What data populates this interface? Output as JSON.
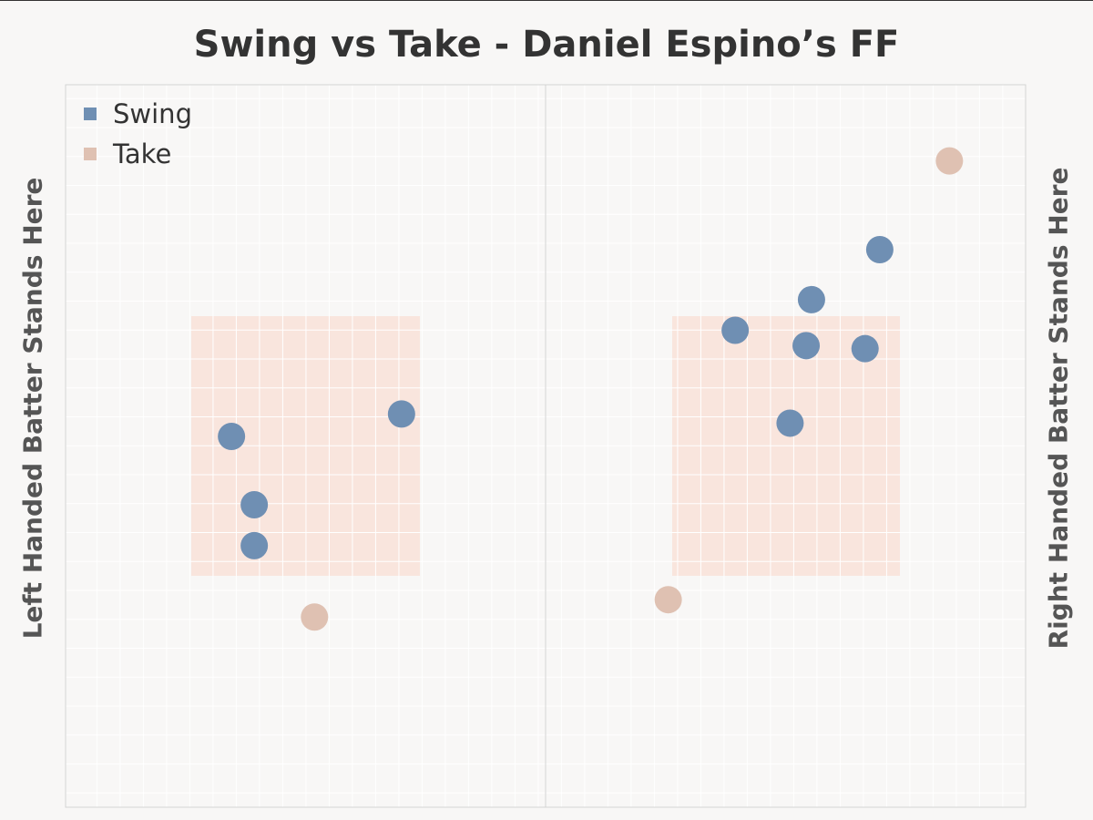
{
  "colors": {
    "swing": "#6f8fb3",
    "take": "#dfc1b2",
    "zone": "#f9e5dd",
    "background": "#f8f7f6"
  },
  "chart_data": {
    "type": "scatter",
    "title": "Swing vs Take - Daniel Espino’s FF",
    "left_label": "Left Handed Batter Stands Here",
    "right_label": "Right Handed Batter Stands Here",
    "legend": [
      {
        "name": "Swing",
        "color": "#6f8fb3"
      },
      {
        "name": "Take",
        "color": "#dfc1b2"
      }
    ],
    "legend_position": "top-left",
    "grid": true,
    "panels": [
      {
        "side": "left",
        "points": [
          {
            "x": -0.55,
            "y": 3.0,
            "result": "Swing"
          },
          {
            "x": 0.72,
            "y": 3.22,
            "result": "Swing"
          },
          {
            "x": -0.38,
            "y": 2.33,
            "result": "Swing"
          },
          {
            "x": -0.38,
            "y": 1.93,
            "result": "Swing"
          },
          {
            "x": 0.07,
            "y": 1.23,
            "result": "Take"
          }
        ]
      },
      {
        "side": "right",
        "points": [
          {
            "x": 1.22,
            "y": 5.7,
            "result": "Take"
          },
          {
            "x": 0.7,
            "y": 4.83,
            "result": "Swing"
          },
          {
            "x": 0.19,
            "y": 4.34,
            "result": "Swing"
          },
          {
            "x": -0.38,
            "y": 4.04,
            "result": "Swing"
          },
          {
            "x": 0.15,
            "y": 3.89,
            "result": "Swing"
          },
          {
            "x": 0.59,
            "y": 3.86,
            "result": "Swing"
          },
          {
            "x": 0.03,
            "y": 3.13,
            "result": "Swing"
          },
          {
            "x": -0.88,
            "y": 1.4,
            "result": "Take"
          }
        ]
      }
    ]
  }
}
